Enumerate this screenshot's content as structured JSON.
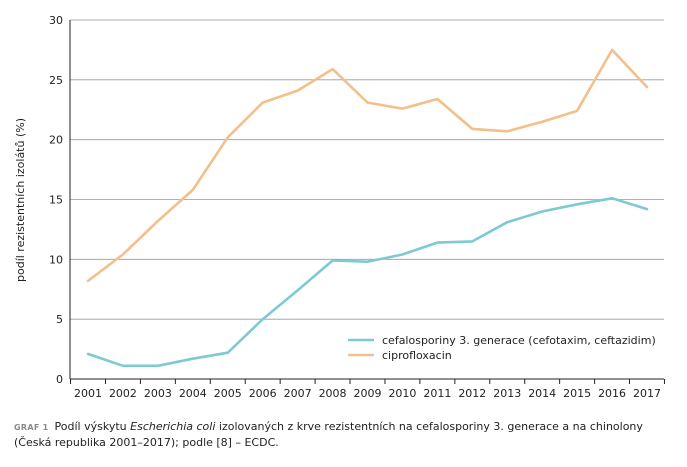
{
  "chart_data": {
    "type": "line",
    "title": "",
    "xlabel": "",
    "ylabel": "podíl rezistentních izolátů (%)",
    "ylim": [
      0,
      30
    ],
    "yticks": [
      0,
      5,
      10,
      15,
      20,
      25,
      30
    ],
    "grid": "horizontal",
    "legend_position": "bottom-right",
    "x": [
      "2001",
      "2002",
      "2003",
      "2004",
      "2005",
      "2006",
      "2007",
      "2008",
      "2009",
      "2010",
      "2011",
      "2012",
      "2013",
      "2014",
      "2015",
      "2016",
      "2017"
    ],
    "series": [
      {
        "name": "cefalosporiny 3. generace (cefotaxim, ceftazidim)",
        "color": "#7ecad3",
        "values": [
          2.1,
          1.1,
          1.1,
          1.7,
          2.2,
          5.0,
          7.4,
          9.9,
          9.8,
          10.4,
          11.4,
          11.5,
          13.1,
          14.0,
          14.6,
          15.1,
          14.2
        ]
      },
      {
        "name": "ciprofloxacin",
        "color": "#f3bf8a",
        "values": [
          8.2,
          10.4,
          13.2,
          15.8,
          20.2,
          23.1,
          24.1,
          25.9,
          23.1,
          22.6,
          23.4,
          20.9,
          20.7,
          21.5,
          22.4,
          27.5,
          24.4
        ]
      }
    ]
  },
  "caption": {
    "tag": "GRAF 1",
    "text_before": "Podíl výskytu ",
    "text_italic": "Escherichia coli",
    "text_after": " izolovaných z krve rezistentních na cefalosporiny 3. generace a na chinolony (Česká republika 2001–2017); podle [8] – ECDC."
  }
}
